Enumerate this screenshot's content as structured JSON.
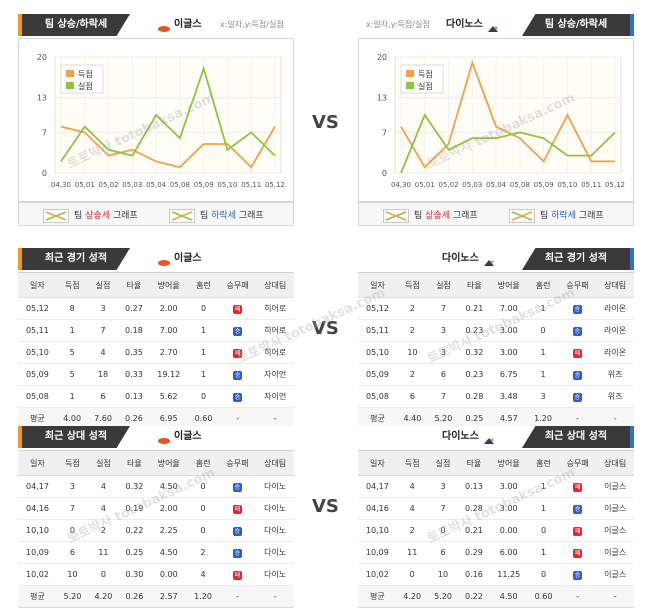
{
  "vs_label": "VS",
  "watermark": "토토박사 totobaksa.com",
  "colors": {
    "score": "#f4a04a",
    "conceded": "#8cc63f",
    "loss": "#e0292e",
    "win": "#2b5fcf",
    "accent_left": "#f39a1e",
    "accent_right": "#2f6fd6"
  },
  "trend": {
    "title": "팀 상승/하락세",
    "xy_label": "x:일자,y:득점/실점",
    "legend_labels": {
      "score": "득점",
      "conceded": "실점"
    },
    "legend_bottom": {
      "prefix": "팀",
      "rise": "상승세",
      "fall": "하락세",
      "suffix": "그래프"
    }
  },
  "teams": {
    "left": {
      "name": "이글스",
      "logo": "eagles-logo"
    },
    "right": {
      "name": "다이노스",
      "logo": "dinos-logo"
    }
  },
  "chart_data": [
    {
      "type": "line",
      "team": "이글스",
      "x": [
        "04,30",
        "05,01",
        "05,02",
        "05,03",
        "05,04",
        "05,08",
        "05,09",
        "05,10",
        "05,11",
        "05,12"
      ],
      "ylim": [
        0,
        20
      ],
      "yticks": [
        0,
        7,
        13,
        20
      ],
      "series": [
        {
          "name": "득점",
          "values": [
            8,
            7,
            3,
            4,
            2,
            1,
            5,
            5,
            1,
            8
          ]
        },
        {
          "name": "실점",
          "values": [
            2,
            8,
            4,
            3,
            10,
            6,
            18,
            4,
            7,
            3
          ]
        }
      ]
    },
    {
      "type": "line",
      "team": "다이노스",
      "x": [
        "04,30",
        "05,01",
        "05,02",
        "05,03",
        "05,04",
        "05,08",
        "05,09",
        "05,10",
        "05,11",
        "05,12"
      ],
      "ylim": [
        0,
        20
      ],
      "yticks": [
        0,
        7,
        13,
        20
      ],
      "series": [
        {
          "name": "득점",
          "values": [
            8,
            1,
            5,
            19,
            8,
            6,
            2,
            10,
            2,
            2
          ]
        },
        {
          "name": "실점",
          "values": [
            0,
            10,
            4,
            6,
            6,
            7,
            6,
            3,
            3,
            7
          ]
        }
      ]
    }
  ],
  "recent": {
    "title": "최근 경기 성적",
    "headers": [
      "일자",
      "득점",
      "실점",
      "타율",
      "방어율",
      "홈런",
      "승무패",
      "상대팀"
    ],
    "left": {
      "rows": [
        [
          "05,12",
          "8",
          "3",
          "0.27",
          "2.00",
          "0",
          "loss",
          "히어로"
        ],
        [
          "05,11",
          "1",
          "7",
          "0.18",
          "7.00",
          "1",
          "win",
          "히어로"
        ],
        [
          "05,10",
          "5",
          "4",
          "0.35",
          "2.70",
          "1",
          "loss",
          "히어로"
        ],
        [
          "05,09",
          "5",
          "18",
          "0.33",
          "19.12",
          "1",
          "win",
          "자이언"
        ],
        [
          "05,08",
          "1",
          "6",
          "0.13",
          "5.62",
          "0",
          "win",
          "자이언"
        ]
      ],
      "avg": [
        "평균",
        "4.00",
        "7.60",
        "0.26",
        "6.95",
        "0.60",
        "-",
        "-"
      ]
    },
    "right": {
      "rows": [
        [
          "05,12",
          "2",
          "7",
          "0.21",
          "7.00",
          "1",
          "win",
          "라이온"
        ],
        [
          "05,11",
          "2",
          "3",
          "0.23",
          "3.00",
          "0",
          "win",
          "라이온"
        ],
        [
          "05,10",
          "10",
          "3",
          "0.32",
          "3.00",
          "1",
          "loss",
          "라이온"
        ],
        [
          "05,09",
          "2",
          "6",
          "0.23",
          "6.75",
          "1",
          "win",
          "위즈"
        ],
        [
          "05,08",
          "6",
          "7",
          "0.28",
          "3.48",
          "3",
          "win",
          "위즈"
        ]
      ],
      "avg": [
        "평균",
        "4.40",
        "5.20",
        "0.25",
        "4.57",
        "1.20",
        "-",
        "-"
      ]
    }
  },
  "h2h": {
    "title": "최근 상대 성적",
    "headers": [
      "일자",
      "득점",
      "실점",
      "타율",
      "방어율",
      "홈런",
      "승무패",
      "상대팀"
    ],
    "left": {
      "rows": [
        [
          "04,17",
          "3",
          "4",
          "0.32",
          "4.50",
          "0",
          "win",
          "다이노"
        ],
        [
          "04,16",
          "7",
          "4",
          "0.19",
          "2.00",
          "0",
          "loss",
          "다이노"
        ],
        [
          "10,10",
          "0",
          "2",
          "0.22",
          "2.25",
          "0",
          "win",
          "다이노"
        ],
        [
          "10,09",
          "6",
          "11",
          "0.25",
          "4.50",
          "2",
          "win",
          "다이노"
        ],
        [
          "10,02",
          "10",
          "0",
          "0.30",
          "0.00",
          "4",
          "loss",
          "다이노"
        ]
      ],
      "avg": [
        "평균",
        "5.20",
        "4.20",
        "0.26",
        "2.57",
        "1.20",
        "-",
        "-"
      ]
    },
    "right": {
      "rows": [
        [
          "04,17",
          "4",
          "3",
          "0.13",
          "3.00",
          "1",
          "loss",
          "이글스"
        ],
        [
          "04,16",
          "4",
          "7",
          "0.28",
          "3.00",
          "1",
          "win",
          "이글스"
        ],
        [
          "10,10",
          "2",
          "0",
          "0.21",
          "0.00",
          "0",
          "loss",
          "이글스"
        ],
        [
          "10,09",
          "11",
          "6",
          "0.29",
          "6.00",
          "1",
          "loss",
          "이글스"
        ],
        [
          "10,02",
          "0",
          "10",
          "0.16",
          "11.25",
          "0",
          "win",
          "이글스"
        ]
      ],
      "avg": [
        "평균",
        "4.20",
        "5.20",
        "0.22",
        "4.50",
        "0.60",
        "-",
        "-"
      ]
    }
  },
  "result_glyphs": {
    "loss": "패",
    "win": "승"
  }
}
